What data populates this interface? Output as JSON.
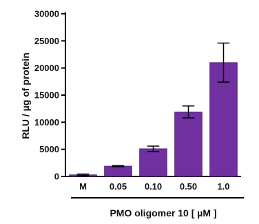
{
  "chart_data": {
    "type": "bar",
    "title": "",
    "ylabel": "RLU / µg of protein",
    "xlabel": "PMO oligomer 10 [ µM ]",
    "categories": [
      "M",
      "0.05",
      "0.10",
      "0.50",
      "1.0"
    ],
    "values": [
      300,
      1900,
      5100,
      11900,
      21000
    ],
    "errors": [
      150,
      100,
      500,
      1100,
      3600
    ],
    "ylim": [
      0,
      30000
    ],
    "yticks": [
      0,
      5000,
      10000,
      15000,
      20000,
      25000,
      30000
    ],
    "grid": false,
    "colors": {
      "bar": "#7030a0",
      "bar_edge": "#4a1f6b",
      "axis": "#000000"
    }
  }
}
